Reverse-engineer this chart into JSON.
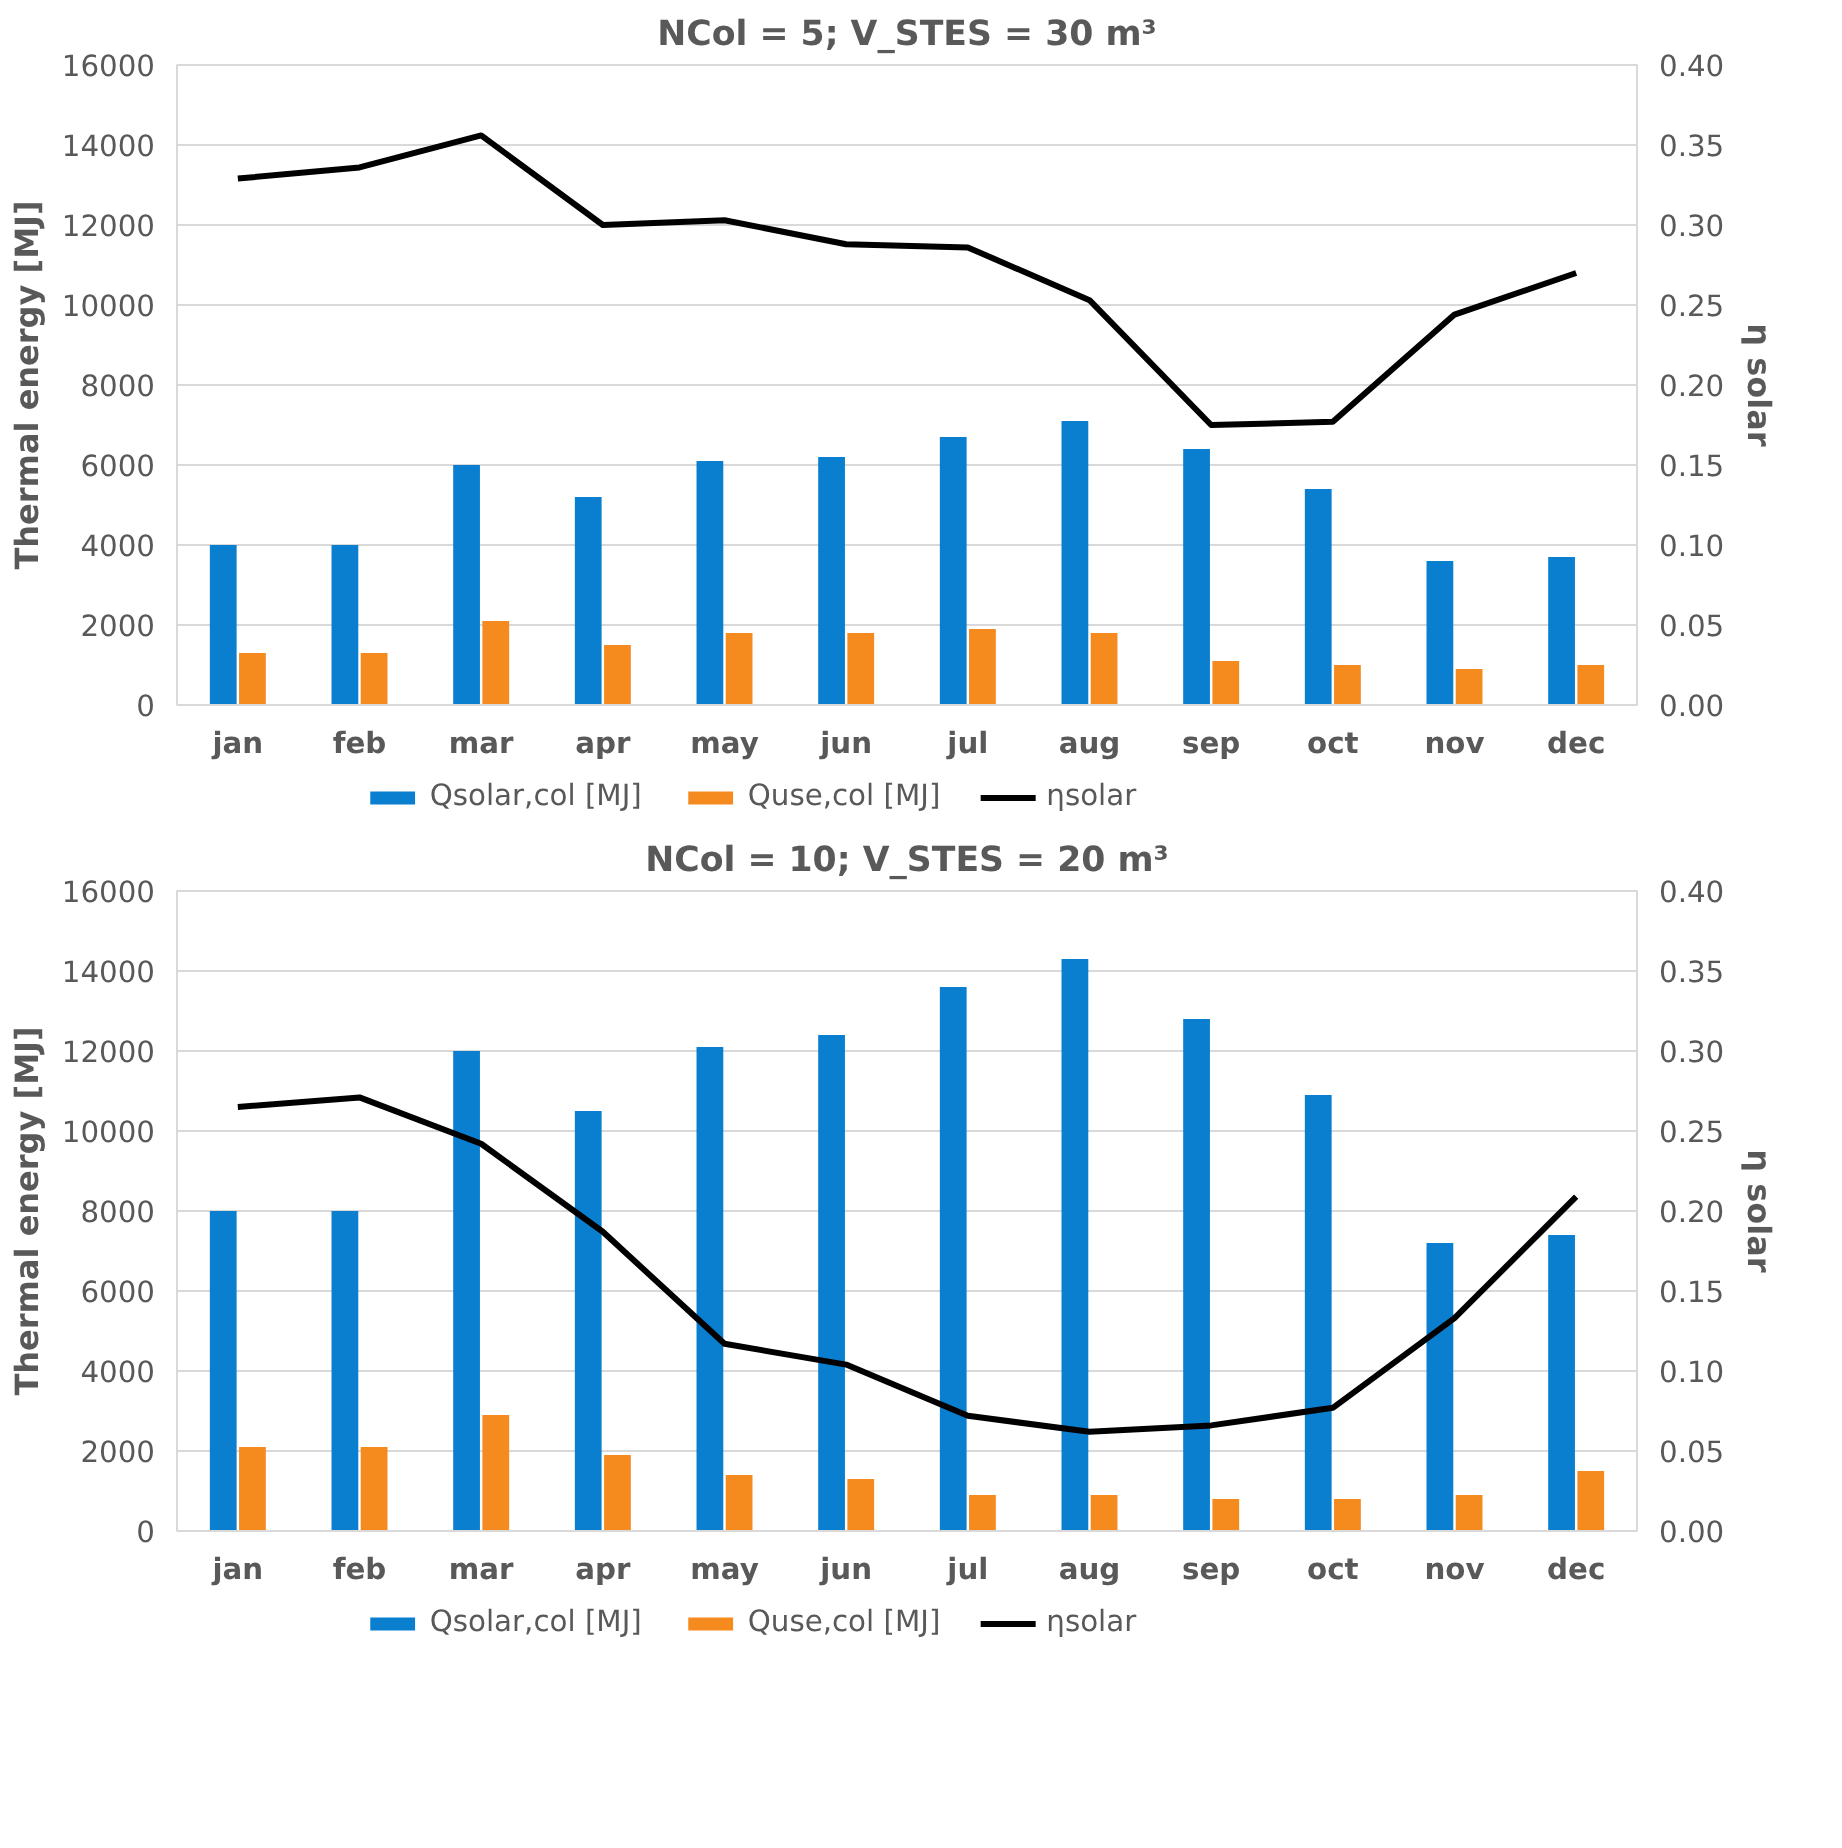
{
  "chart_data": [
    {
      "type": "bar",
      "title": "NCol = 5; V_STES = 30 m³",
      "ylabel": "Thermal energy [MJ]",
      "y2label": "η solar",
      "categories": [
        "jan",
        "feb",
        "mar",
        "apr",
        "may",
        "jun",
        "jul",
        "aug",
        "sep",
        "oct",
        "nov",
        "dec"
      ],
      "series": [
        {
          "name": "Qsolar,col [MJ]",
          "color": "#0a7fd0",
          "values": [
            4000,
            4000,
            6000,
            5200,
            6100,
            6200,
            6700,
            7100,
            6400,
            5400,
            3600,
            3700
          ]
        },
        {
          "name": "Quse,col [MJ]",
          "color": "#f58a1f",
          "values": [
            1300,
            1300,
            2100,
            1500,
            1800,
            1800,
            1900,
            1800,
            1100,
            1000,
            900,
            1000
          ]
        },
        {
          "name": "ηsolar",
          "color": "#000000",
          "type": "line",
          "axis": "y2",
          "values": [
            0.329,
            0.336,
            0.356,
            0.3,
            0.303,
            0.288,
            0.286,
            0.253,
            0.175,
            0.177,
            0.244,
            0.27
          ]
        }
      ],
      "ylim": [
        0,
        16000
      ],
      "yticks": [
        0,
        2000,
        4000,
        6000,
        8000,
        10000,
        12000,
        14000,
        16000
      ],
      "y2lim": [
        0,
        0.4
      ],
      "y2ticks": [
        {
          "value": 0,
          "label": "0.00"
        },
        {
          "value": 0.05,
          "label": "0.05"
        },
        {
          "value": 0.1,
          "label": "0.10"
        },
        {
          "value": 0.15,
          "label": "0.15"
        },
        {
          "value": 0.2,
          "label": "0.20"
        },
        {
          "value": 0.25,
          "label": "0.25"
        },
        {
          "value": 0.3,
          "label": "0.30"
        },
        {
          "value": 0.35,
          "label": "0.35"
        },
        {
          "value": 0.4,
          "label": "0.40"
        }
      ],
      "grid": "y",
      "legend": "bottom"
    },
    {
      "type": "bar",
      "title": "NCol = 10; V_STES = 20 m³",
      "ylabel": "Thermal energy [MJ]",
      "y2label": "η solar",
      "categories": [
        "jan",
        "feb",
        "mar",
        "apr",
        "may",
        "jun",
        "jul",
        "aug",
        "sep",
        "oct",
        "nov",
        "dec"
      ],
      "series": [
        {
          "name": "Qsolar,col [MJ]",
          "color": "#0a7fd0",
          "values": [
            8000,
            8000,
            12000,
            10500,
            12100,
            12400,
            13600,
            14300,
            12800,
            10900,
            7200,
            7400
          ]
        },
        {
          "name": "Quse,col [MJ]",
          "color": "#f58a1f",
          "values": [
            2100,
            2100,
            2900,
            1900,
            1400,
            1300,
            900,
            900,
            800,
            800,
            900,
            1500
          ]
        },
        {
          "name": "ηsolar",
          "color": "#000000",
          "type": "line",
          "axis": "y2",
          "values": [
            0.265,
            0.271,
            0.242,
            0.187,
            0.117,
            0.104,
            0.072,
            0.062,
            0.066,
            0.077,
            0.133,
            0.209
          ]
        }
      ],
      "ylim": [
        0,
        16000
      ],
      "yticks": [
        0,
        2000,
        4000,
        6000,
        8000,
        10000,
        12000,
        14000,
        16000
      ],
      "y2lim": [
        0,
        0.4
      ],
      "y2ticks": [
        {
          "value": 0,
          "label": "0.00"
        },
        {
          "value": 0.05,
          "label": "0.05"
        },
        {
          "value": 0.1,
          "label": "0.10"
        },
        {
          "value": 0.15,
          "label": "0.15"
        },
        {
          "value": 0.2,
          "label": "0.20"
        },
        {
          "value": 0.25,
          "label": "0.25"
        },
        {
          "value": 0.3,
          "label": "0.30"
        },
        {
          "value": 0.35,
          "label": "0.35"
        },
        {
          "value": 0.4,
          "label": "0.40"
        }
      ],
      "grid": "y",
      "legend": "bottom"
    }
  ]
}
